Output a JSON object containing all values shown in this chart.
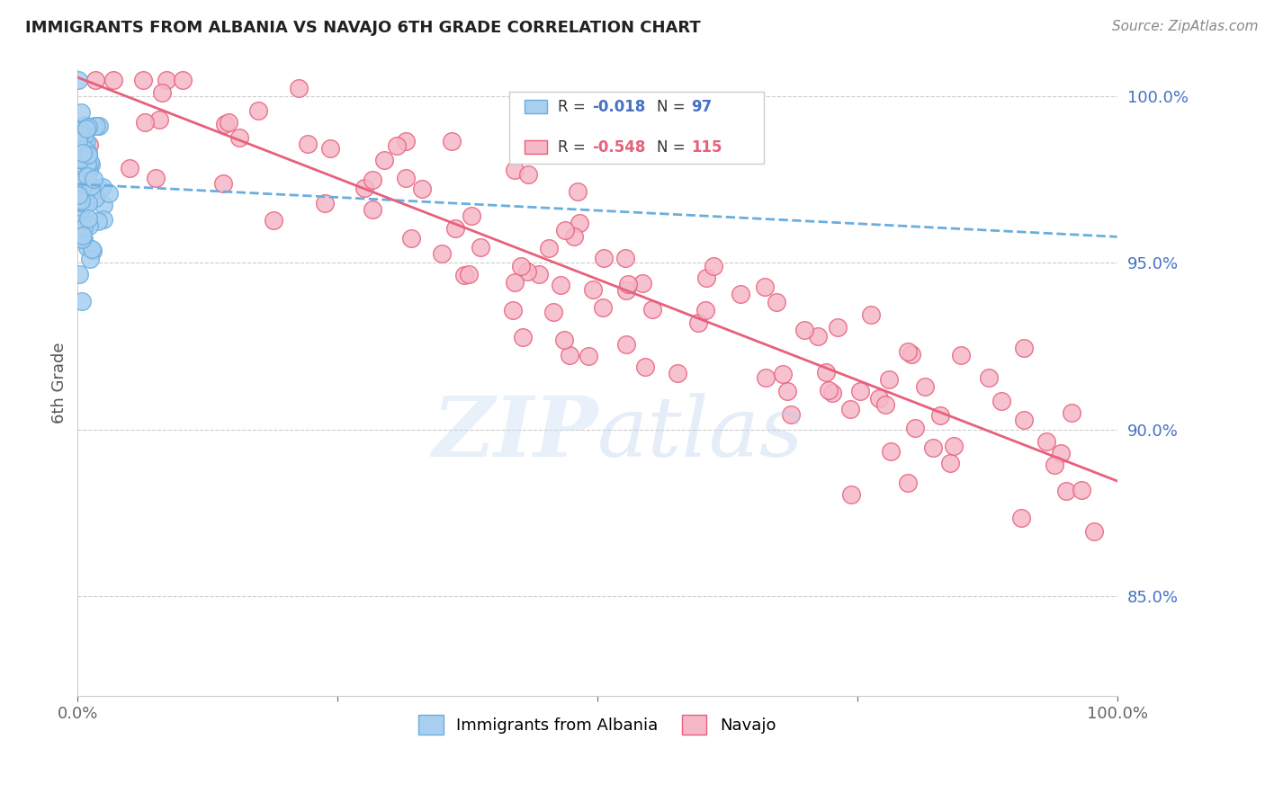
{
  "title": "IMMIGRANTS FROM ALBANIA VS NAVAJO 6TH GRADE CORRELATION CHART",
  "source": "Source: ZipAtlas.com",
  "ylabel": "6th Grade",
  "xlim": [
    0.0,
    1.0
  ],
  "ylim": [
    0.82,
    1.008
  ],
  "x_tick_positions": [
    0.0,
    0.25,
    0.5,
    0.75,
    1.0
  ],
  "x_tick_labels": [
    "0.0%",
    "",
    "",
    "",
    "100.0%"
  ],
  "y_tick_values": [
    0.85,
    0.9,
    0.95,
    1.0
  ],
  "y_tick_labels": [
    "85.0%",
    "90.0%",
    "95.0%",
    "100.0%"
  ],
  "albania_color": "#a8cff0",
  "albania_edge": "#6aaede",
  "navajo_color": "#f5b8c8",
  "navajo_edge": "#e8607a",
  "albania_R": -0.018,
  "albania_N": 97,
  "navajo_R": -0.548,
  "navajo_N": 115,
  "trend_albania_color": "#6aaede",
  "trend_navajo_color": "#e8607a",
  "grid_color": "#cccccc",
  "background_color": "#ffffff",
  "title_fontsize": 13,
  "source_fontsize": 11,
  "tick_fontsize": 13,
  "legend_fontsize": 12,
  "right_tick_color": "#4472c4"
}
